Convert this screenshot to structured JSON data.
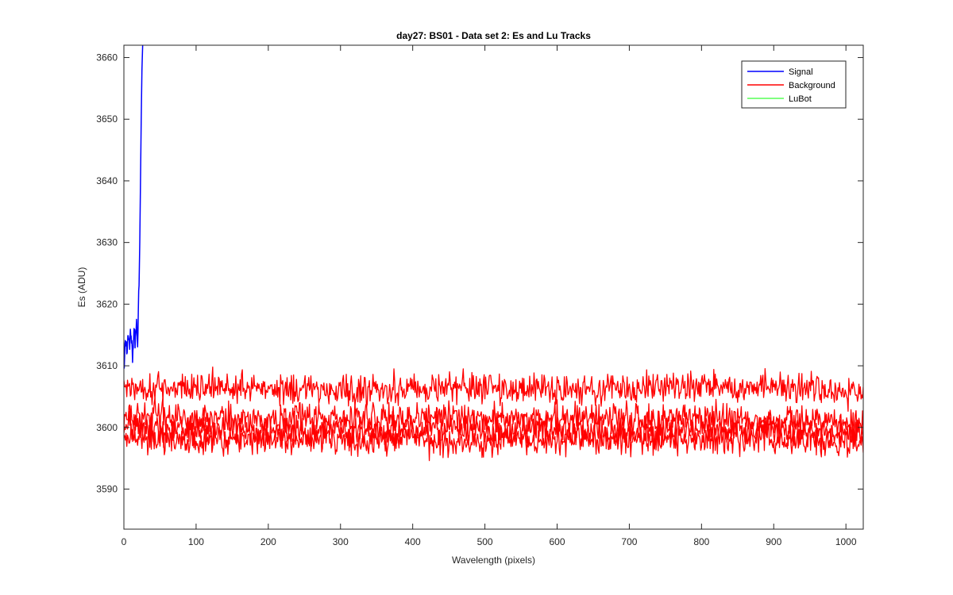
{
  "chart_data": {
    "type": "line",
    "title": "day27: BS01 - Data set 2: Es and Lu Tracks",
    "xlabel": "Wavelength (pixels)",
    "ylabel": "Es (ADU)",
    "xlim": [
      0,
      1024
    ],
    "ylim": [
      3583.5,
      3662
    ],
    "xticks": [
      0,
      100,
      200,
      300,
      400,
      500,
      600,
      700,
      800,
      900,
      1000
    ],
    "yticks": [
      3590,
      3600,
      3610,
      3620,
      3630,
      3640,
      3650,
      3660
    ],
    "grid": false,
    "legend": {
      "placement": "top-right",
      "entries": [
        "Signal",
        "Background",
        "LuBot"
      ]
    },
    "series": [
      {
        "name": "Signal",
        "color": "#0000ff",
        "x": [
          0,
          2,
          4,
          6,
          8,
          10,
          12,
          14,
          16,
          18,
          19,
          20,
          21,
          22,
          23,
          24,
          25,
          26
        ],
        "y": [
          3610,
          3614,
          3612,
          3615,
          3613,
          3616,
          3612,
          3615,
          3614,
          3617,
          3614,
          3619,
          3623,
          3630,
          3640,
          3650,
          3658,
          3662
        ]
      },
      {
        "name": "Background",
        "color": "#ff0000",
        "tracks": [
          {
            "x": [
              0,
              100,
              200,
              300,
              400,
              500,
              600,
              700,
              800,
              900,
              1000,
              1024
            ],
            "y": [
              3606.5,
              3606.5,
              3606.5,
              3606,
              3606.5,
              3606.5,
              3606,
              3606.5,
              3606.5,
              3606.5,
              3606,
              3606
            ],
            "noise": 1.2
          },
          {
            "x": [
              0,
              100,
              200,
              300,
              400,
              500,
              600,
              700,
              800,
              900,
              1000,
              1024
            ],
            "y": [
              3602,
              3601.5,
              3601.5,
              3601.5,
              3601.5,
              3601.5,
              3601.5,
              3601.5,
              3601.5,
              3601,
              3601,
              3601
            ],
            "noise": 1.2
          },
          {
            "x": [
              0,
              100,
              200,
              300,
              400,
              500,
              600,
              700,
              800,
              900,
              1000,
              1024
            ],
            "y": [
              3600,
              3599.5,
              3599.5,
              3599.5,
              3599.5,
              3599.5,
              3599.5,
              3599.5,
              3599.5,
              3599.5,
              3599,
              3599
            ],
            "noise": 1.2
          },
          {
            "x": [
              0,
              100,
              200,
              300,
              400,
              500,
              600,
              700,
              800,
              900,
              1000,
              1024
            ],
            "y": [
              3598.5,
              3598,
              3598,
              3598,
              3598,
              3598,
              3598,
              3598,
              3598,
              3598,
              3597.5,
              3597.5
            ],
            "noise": 1.2
          }
        ]
      },
      {
        "name": "LuBot",
        "color": "#00ff00",
        "x": [],
        "y": []
      }
    ]
  }
}
